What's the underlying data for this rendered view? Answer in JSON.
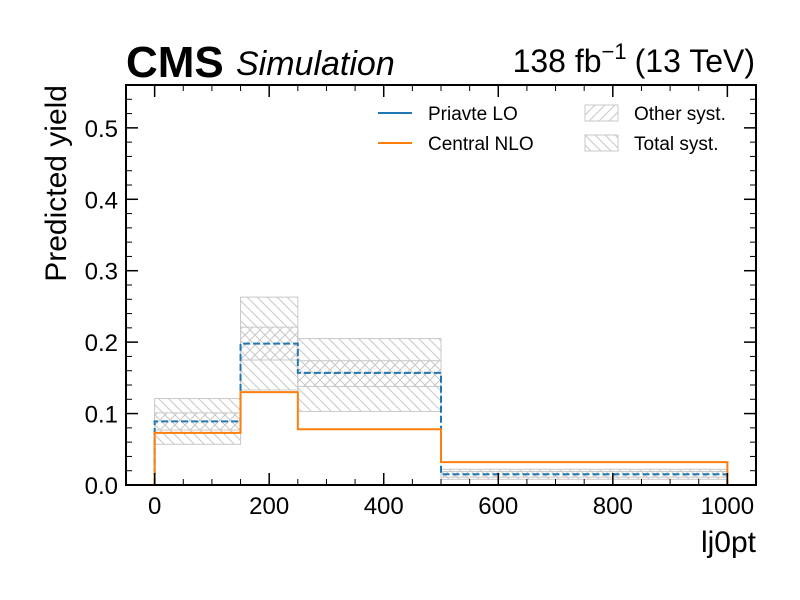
{
  "header": {
    "experiment": "CMS",
    "status": "Simulation",
    "lumi_value": "138 fb",
    "lumi_exp": "−1",
    "energy": "(13 TeV)"
  },
  "chart_data": {
    "type": "step",
    "xlabel": "lj0pt",
    "ylabel": "Predicted yield",
    "xlim": [
      -50,
      1050
    ],
    "ylim": [
      0,
      0.56
    ],
    "x_ticks": [
      0,
      200,
      400,
      600,
      800,
      1000
    ],
    "x_tick_labels": [
      "0",
      "200",
      "400",
      "600",
      "800",
      "1000"
    ],
    "y_ticks": [
      0.0,
      0.1,
      0.2,
      0.3,
      0.4,
      0.5
    ],
    "y_tick_labels": [
      "0.0",
      "0.1",
      "0.2",
      "0.3",
      "0.4",
      "0.5"
    ],
    "bin_edges": [
      0,
      150,
      250,
      500,
      1000
    ],
    "series": [
      {
        "name": "Priavte LO",
        "color": "#1f77b4",
        "values": [
          0.089,
          0.198,
          0.157,
          0.015
        ]
      },
      {
        "name": "Central NLO",
        "color": "#ff7f0e",
        "values": [
          0.073,
          0.13,
          0.078,
          0.032
        ]
      }
    ],
    "bands": [
      {
        "name": "Other syst.",
        "hatch": "forward",
        "color": "#c8c8c8",
        "low": [
          0.077,
          0.175,
          0.138,
          0.011
        ],
        "high": [
          0.101,
          0.221,
          0.174,
          0.019
        ]
      },
      {
        "name": "Total syst.",
        "hatch": "backward",
        "color": "#c8c8c8",
        "low": [
          0.057,
          0.133,
          0.103,
          0.008
        ],
        "high": [
          0.121,
          0.263,
          0.205,
          0.022
        ]
      }
    ],
    "legend_position": "top-right",
    "grid": false
  }
}
